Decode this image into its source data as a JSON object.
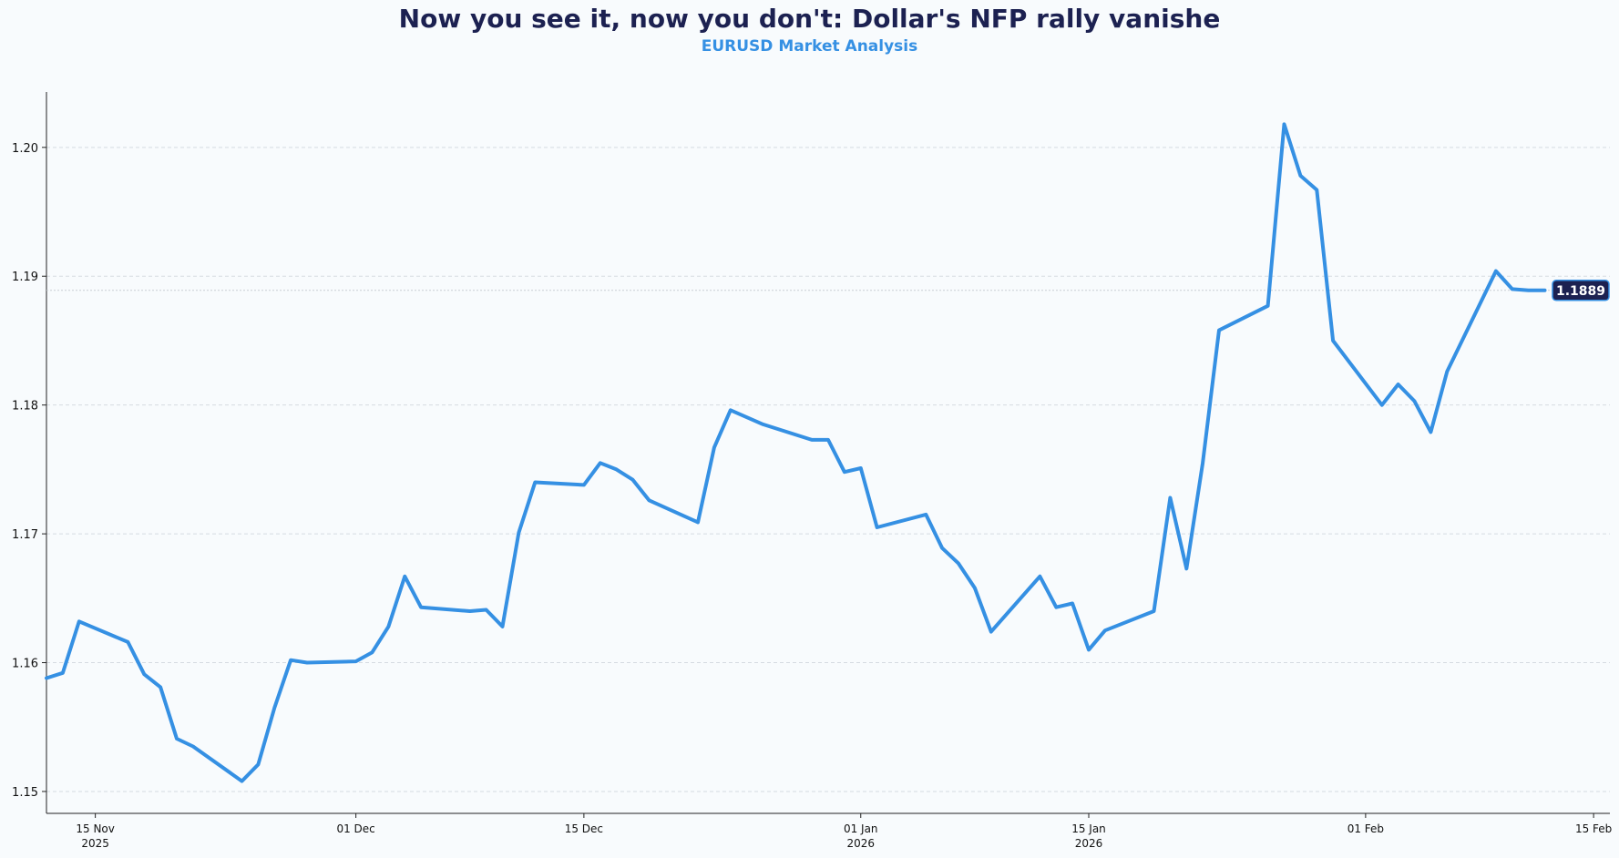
{
  "chart_data": {
    "type": "line",
    "title": "Now you see it, now you don't: Dollar's NFP rally vanishe",
    "subtitle": "EURUSD Market Analysis",
    "xlabel": "",
    "ylabel": "",
    "ylim": [
      1.1483,
      1.2043
    ],
    "xlim": [
      "2025-11-12",
      "2026-02-16"
    ],
    "yticks": [
      "1.15",
      "1.16",
      "1.17",
      "1.18",
      "1.19",
      "1.20"
    ],
    "xticks": [
      {
        "date": "2025-11-15",
        "label": "15 Nov",
        "sub": "2025"
      },
      {
        "date": "2025-12-01",
        "label": "01 Dec",
        "sub": ""
      },
      {
        "date": "2025-12-15",
        "label": "15 Dec",
        "sub": ""
      },
      {
        "date": "2026-01-01",
        "label": "01 Jan",
        "sub": "2026"
      },
      {
        "date": "2026-01-15",
        "label": "15 Jan",
        "sub": "2026"
      },
      {
        "date": "2026-02-01",
        "label": "01 Feb",
        "sub": ""
      },
      {
        "date": "2026-02-15",
        "label": "15 Feb",
        "sub": ""
      }
    ],
    "grid": "horizontal dashed",
    "last_value_label": "1.1889",
    "last_value": 1.1889,
    "colors": {
      "line": "#3590e3",
      "title": "#1c2151",
      "badge": "#1c2151"
    },
    "series": [
      {
        "name": "EURUSD",
        "x": [
          "2025-11-12",
          "2025-11-13",
          "2025-11-14",
          "2025-11-17",
          "2025-11-18",
          "2025-11-19",
          "2025-11-20",
          "2025-11-21",
          "2025-11-24",
          "2025-11-25",
          "2025-11-26",
          "2025-11-27",
          "2025-11-28",
          "2025-12-01",
          "2025-12-02",
          "2025-12-03",
          "2025-12-04",
          "2025-12-05",
          "2025-12-08",
          "2025-12-09",
          "2025-12-10",
          "2025-12-11",
          "2025-12-12",
          "2025-12-15",
          "2025-12-16",
          "2025-12-17",
          "2025-12-18",
          "2025-12-19",
          "2025-12-22",
          "2025-12-23",
          "2025-12-24",
          "2025-12-26",
          "2025-12-29",
          "2025-12-30",
          "2025-12-31",
          "2026-01-01",
          "2026-01-02",
          "2026-01-05",
          "2026-01-06",
          "2026-01-07",
          "2026-01-08",
          "2026-01-09",
          "2026-01-12",
          "2026-01-13",
          "2026-01-14",
          "2026-01-15",
          "2026-01-16",
          "2026-01-19",
          "2026-01-20",
          "2026-01-21",
          "2026-01-22",
          "2026-01-23",
          "2026-01-26",
          "2026-01-27",
          "2026-01-28",
          "2026-01-29",
          "2026-01-30",
          "2026-02-02",
          "2026-02-03",
          "2026-02-04",
          "2026-02-05",
          "2026-02-06",
          "2026-02-09",
          "2026-02-10",
          "2026-02-11",
          "2026-02-12"
        ],
        "values": [
          1.1588,
          1.1592,
          1.1632,
          1.1616,
          1.1591,
          1.1581,
          1.1541,
          1.1535,
          1.1508,
          1.1521,
          1.1565,
          1.1602,
          1.16,
          1.1601,
          1.1608,
          1.1628,
          1.1667,
          1.1643,
          1.164,
          1.1641,
          1.1628,
          1.1701,
          1.174,
          1.1738,
          1.1755,
          1.175,
          1.1742,
          1.1726,
          1.1709,
          1.1767,
          1.1796,
          1.1785,
          1.1773,
          1.1773,
          1.1748,
          1.1751,
          1.1705,
          1.1715,
          1.1689,
          1.1677,
          1.1658,
          1.1624,
          1.1667,
          1.1643,
          1.1646,
          1.161,
          1.1625,
          1.164,
          1.1728,
          1.1673,
          1.1755,
          1.1858,
          1.1877,
          1.2018,
          1.1978,
          1.1967,
          1.185,
          1.18,
          1.1816,
          1.1803,
          1.1779,
          1.1826,
          1.1904,
          1.189,
          1.1889,
          1.1889
        ]
      }
    ]
  }
}
